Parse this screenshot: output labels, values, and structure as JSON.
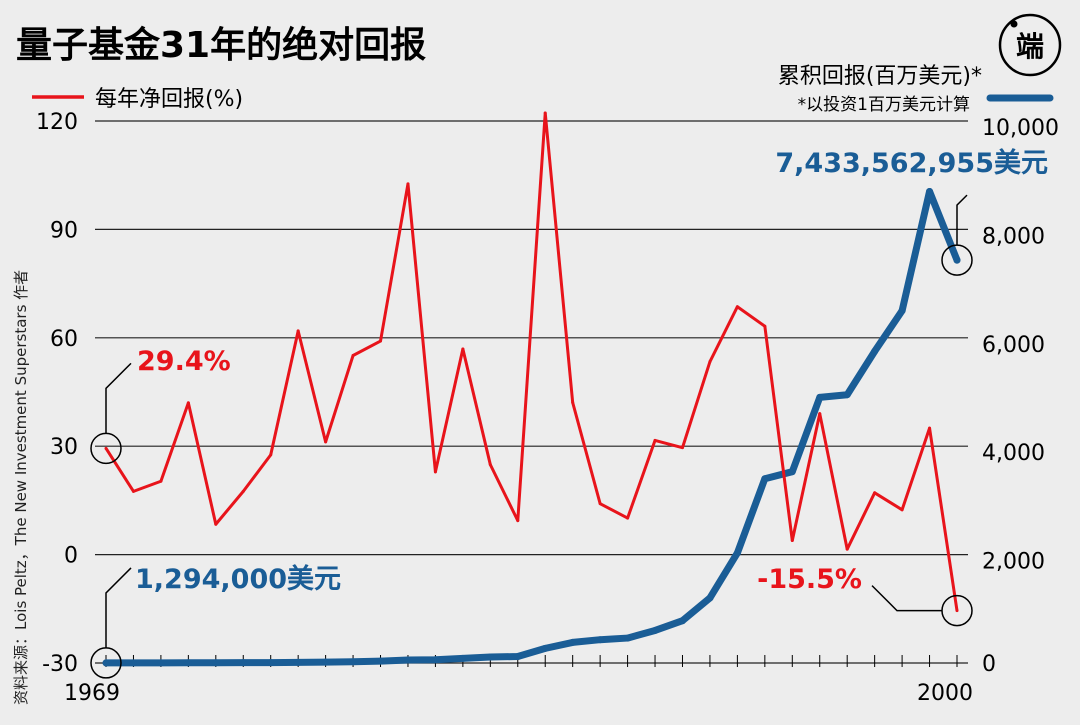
{
  "title": "量子基金31年的绝对回报",
  "source_text": "资料来源：Lois Peltz，The New Investment Superstars 作者",
  "logo_text": "端",
  "colors": {
    "red": "#e8141b",
    "blue": "#1a5d96",
    "grid": "#222222",
    "bg": "#ededed"
  },
  "chart_data": {
    "type": "line",
    "title": "量子基金31年的绝对回报",
    "x": [
      1969,
      1970,
      1971,
      1972,
      1973,
      1974,
      1975,
      1976,
      1977,
      1978,
      1979,
      1980,
      1981,
      1982,
      1983,
      1984,
      1985,
      1986,
      1987,
      1988,
      1989,
      1990,
      1991,
      1992,
      1993,
      1994,
      1995,
      1996,
      1997,
      1998,
      1999,
      2000
    ],
    "x_tick_labels": [
      "1969",
      "2000"
    ],
    "left_axis": {
      "ylim": [
        -30,
        120
      ],
      "ticks": [
        -30,
        0,
        30,
        60,
        90,
        120
      ],
      "tick_labels": [
        "-30",
        "0",
        "30",
        "60",
        "90",
        "120"
      ]
    },
    "right_axis": {
      "ylim": [
        0,
        10000
      ],
      "ticks": [
        0,
        2000,
        4000,
        6000,
        8000,
        10000
      ],
      "tick_labels": [
        "0",
        "2,000",
        "4,000",
        "6,000",
        "8,000",
        "10,000"
      ]
    },
    "series": [
      {
        "name": "每年净回报(%)",
        "axis": "left",
        "color": "#e8141b",
        "values": [
          29.4,
          17.5,
          20.3,
          42.0,
          8.4,
          17.5,
          27.6,
          61.9,
          31.2,
          55.1,
          59.1,
          102.6,
          22.9,
          56.9,
          24.9,
          9.4,
          122.2,
          42.1,
          14.1,
          10.1,
          31.6,
          29.6,
          53.4,
          68.6,
          63.2,
          3.9,
          39.0,
          1.5,
          17.1,
          12.4,
          35.0,
          -15.5
        ]
      },
      {
        "name": "累积回报(百万美元)*",
        "axis": "right",
        "color": "#1a5d96",
        "values": [
          1.294,
          2,
          3,
          4,
          5,
          6,
          8,
          12,
          15,
          22,
          35,
          55,
          60,
          85,
          110,
          120,
          270,
          380,
          430,
          460,
          600,
          780,
          1200,
          2030,
          3400,
          3530,
          4900,
          4950,
          5750,
          6500,
          8700,
          7433.56
        ]
      }
    ],
    "legend": {
      "red_label": "每年净回报(%)",
      "blue_label": "累积回报(百万美元)*",
      "blue_note": "*以投资1百万美元计算"
    },
    "annotations": {
      "red_start": "29.4%",
      "red_end": "-15.5%",
      "blue_start": "1,294,000美元",
      "blue_end": "7,433,562,955美元"
    }
  }
}
